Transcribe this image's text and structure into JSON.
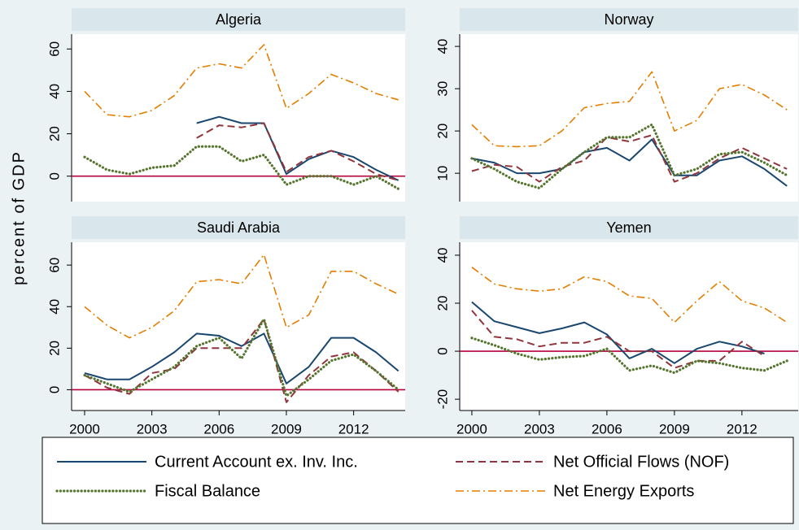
{
  "chart_data": [
    {
      "type": "line",
      "title": "Algeria",
      "ylabel": "percent of GDP",
      "x": [
        2000,
        2001,
        2002,
        2003,
        2004,
        2005,
        2006,
        2007,
        2008,
        2009,
        2010,
        2011,
        2012,
        2013,
        2014
      ],
      "xlim": [
        1999.42,
        2014.3
      ],
      "ylim": [
        -12,
        67
      ],
      "yticks": [
        0,
        20,
        40,
        60
      ],
      "reference_line": 0,
      "series": [
        {
          "name": "Current Account ex. Inv. Inc.",
          "color": "#1a476f",
          "style": "solid",
          "values": [
            null,
            null,
            null,
            null,
            null,
            25,
            28,
            25,
            25,
            1,
            8,
            12,
            9,
            3,
            -2
          ]
        },
        {
          "name": "Net Official Flows (NOF)",
          "color": "#90353b",
          "style": "dashed",
          "values": [
            null,
            null,
            null,
            null,
            null,
            18,
            24,
            23,
            25,
            2,
            9,
            12,
            7,
            1,
            -2
          ]
        },
        {
          "name": "Fiscal Balance",
          "color": "#55752f",
          "style": "dotted",
          "values": [
            9,
            3,
            1,
            4,
            5,
            14,
            14,
            7,
            10,
            -4,
            0,
            0,
            -4,
            0,
            -6
          ]
        },
        {
          "name": "Net Energy Exports",
          "color": "#e37e00",
          "style": "dashdot",
          "values": [
            40,
            29,
            28,
            31,
            38,
            51,
            53,
            51,
            62,
            32,
            39,
            48,
            44,
            39,
            36
          ]
        }
      ]
    },
    {
      "type": "line",
      "title": "Norway",
      "x": [
        2000,
        2001,
        2002,
        2003,
        2004,
        2005,
        2006,
        2007,
        2008,
        2009,
        2010,
        2011,
        2012,
        2013,
        2014
      ],
      "xlim": [
        1999.46,
        2014.5
      ],
      "ylim": [
        3.3,
        42.9
      ],
      "yticks": [
        10,
        20,
        30,
        40
      ],
      "series": [
        {
          "color": "#1a476f",
          "style": "solid",
          "values": [
            13.5,
            12.5,
            10,
            10,
            11,
            15,
            16,
            13,
            18,
            9.5,
            9.5,
            13,
            14,
            11,
            7
          ]
        },
        {
          "color": "#90353b",
          "style": "dashed",
          "values": [
            10.5,
            12,
            11.5,
            8,
            11.5,
            13,
            18.5,
            17.5,
            19,
            8,
            10,
            13.5,
            16,
            13.5,
            11
          ]
        },
        {
          "color": "#55752f",
          "style": "dotted",
          "values": [
            13.5,
            11,
            8,
            6.5,
            11,
            15,
            18.5,
            18.5,
            21.5,
            9.5,
            11,
            14.5,
            15,
            12.5,
            9.5
          ]
        },
        {
          "color": "#e37e00",
          "style": "dashdot",
          "values": [
            21.5,
            16.5,
            16.3,
            16.5,
            20,
            25.5,
            26.5,
            27,
            34,
            20,
            22.5,
            30,
            31,
            28.5,
            25
          ]
        }
      ]
    },
    {
      "type": "line",
      "title": "Saudi Arabia",
      "x": [
        2000,
        2001,
        2002,
        2003,
        2004,
        2005,
        2006,
        2007,
        2008,
        2009,
        2010,
        2011,
        2012,
        2013,
        2014
      ],
      "xlim": [
        1999.42,
        2014.3
      ],
      "xticks": [
        2000,
        2003,
        2006,
        2009,
        2012
      ],
      "ylim": [
        -10,
        71
      ],
      "yticks": [
        0,
        20,
        40,
        60
      ],
      "reference_line": 0,
      "series": [
        {
          "color": "#1a476f",
          "style": "solid",
          "values": [
            8,
            5,
            5,
            11,
            18,
            27,
            26,
            21,
            27,
            3,
            11,
            25,
            25,
            18,
            9
          ]
        },
        {
          "color": "#90353b",
          "style": "dashed",
          "values": [
            7,
            1,
            -2,
            8,
            10,
            20,
            20,
            20,
            34,
            -6,
            7,
            16,
            18,
            9,
            -1
          ]
        },
        {
          "color": "#55752f",
          "style": "dotted",
          "values": [
            7,
            3,
            -1,
            5,
            11,
            21,
            25,
            15,
            34,
            -3,
            5,
            14,
            17,
            9,
            0
          ]
        },
        {
          "color": "#e37e00",
          "style": "dashdot",
          "values": [
            40,
            31,
            25,
            30,
            38,
            52,
            53,
            51,
            65,
            30,
            36,
            57,
            57,
            51,
            46
          ]
        }
      ]
    },
    {
      "type": "line",
      "title": "Yemen",
      "x": [
        2000,
        2001,
        2002,
        2003,
        2004,
        2005,
        2006,
        2007,
        2008,
        2009,
        2010,
        2011,
        2012,
        2013,
        2014
      ],
      "xlim": [
        1999.46,
        2014.5
      ],
      "xticks": [
        2000,
        2003,
        2006,
        2009,
        2012
      ],
      "ylim": [
        -24.7,
        45.4
      ],
      "yticks": [
        -20,
        0,
        20,
        40
      ],
      "reference_line": 0,
      "series": [
        {
          "color": "#1a476f",
          "style": "solid",
          "values": [
            20.5,
            12.5,
            10,
            7.5,
            9.5,
            12,
            7,
            -3,
            1,
            -5,
            1,
            4,
            2,
            -1,
            null
          ]
        },
        {
          "color": "#90353b",
          "style": "dashed",
          "values": [
            17,
            6,
            5,
            2,
            3.5,
            3.5,
            6,
            0,
            0,
            -7,
            -4,
            -4,
            4,
            -2,
            null
          ]
        },
        {
          "color": "#55752f",
          "style": "dotted",
          "values": [
            5.5,
            2.5,
            -1,
            -3.5,
            -2.5,
            -2,
            1,
            -8,
            -6,
            -9,
            -4,
            -5,
            -7,
            -8,
            -4
          ]
        },
        {
          "color": "#e37e00",
          "style": "dashdot",
          "values": [
            35,
            28,
            26,
            25,
            26,
            31,
            29,
            23,
            22,
            12,
            21,
            29,
            21,
            18,
            12
          ]
        }
      ]
    }
  ]
}
